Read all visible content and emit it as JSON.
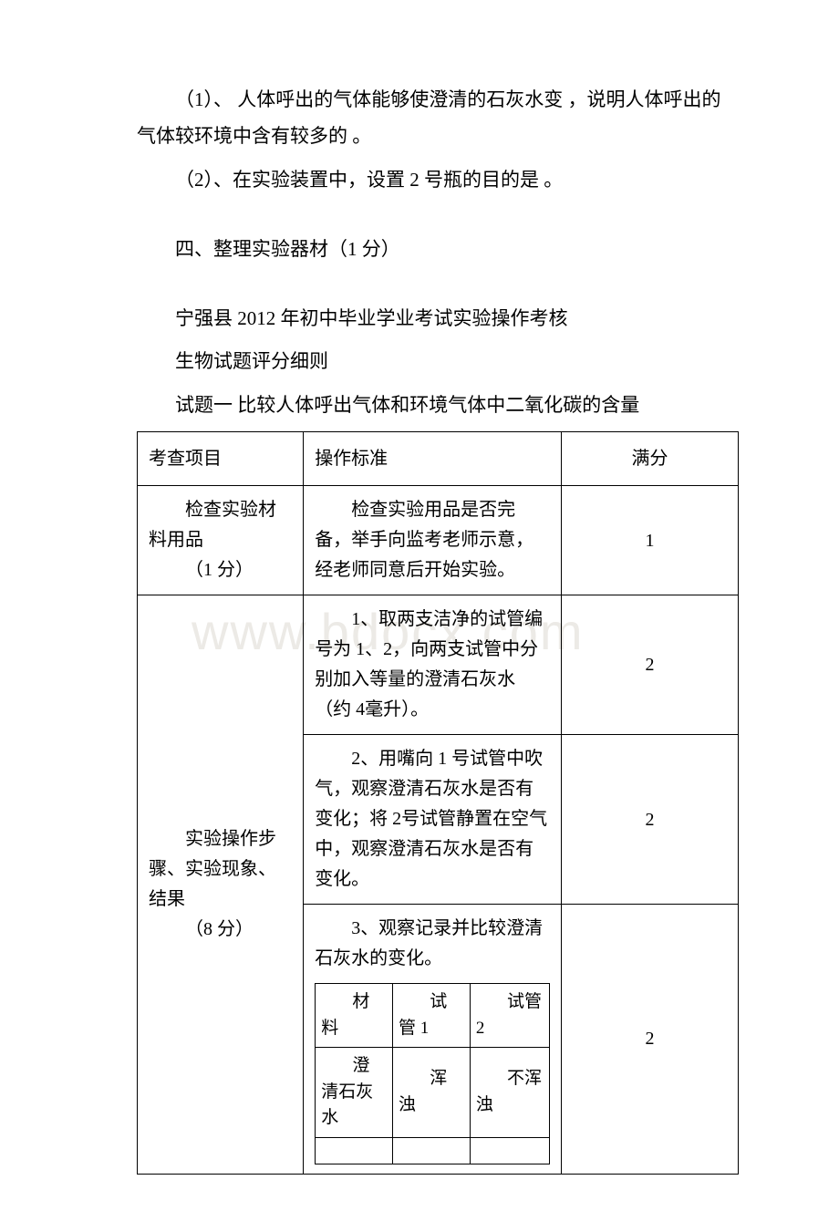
{
  "watermark": "www.bdocx.com",
  "paragraphs": {
    "p1": "（1）、 人体呼出的气体能够使澄清的石灰水变 ，说明人体呼出的气体较环境中含有较多的 。",
    "p2": "（2）、在实验装置中，设置 2 号瓶的目的是 。",
    "p3": "四、整理实验器材（1 分）",
    "p4": "宁强县 2012 年初中毕业学业考试实验操作考核",
    "p5": "生物试题评分细则",
    "p6": "试题一 比较人体呼出气体和环境气体中二氧化碳的含量"
  },
  "table": {
    "headers": {
      "c1": "考查项目",
      "c2": "操作标准",
      "c3": "满分"
    },
    "row1": {
      "c1a": "检查实验材料用品",
      "c1b": "（1 分）",
      "c2": "检查实验用品是否完备，举手向监考老师示意，经老师同意后开始实验。",
      "c3": "1"
    },
    "row2": {
      "c1a": "实验操作步骤、实验现象、结果",
      "c1b": "（8 分）",
      "s1": {
        "text": "1、取两支洁净的试管编号为 1、2，向两支试管中分别加入等量的澄清石灰水（约 4毫升）。",
        "score": "2"
      },
      "s2": {
        "text": "2、用嘴向 1 号试管中吹气，观察澄清石灰水是否有变化；将 2号试管静置在空气中，观察澄清石灰水是否有变化。",
        "score": "2"
      },
      "s3": {
        "text": "3、观察记录并比较澄清石灰水的变化。",
        "score": "2",
        "inner": {
          "h1": "材料",
          "h2": "试管 1",
          "h3": "试管 2",
          "r1c1": "澄清石灰水",
          "r1c2": "浑浊",
          "r1c3": "不浑浊"
        }
      }
    }
  }
}
